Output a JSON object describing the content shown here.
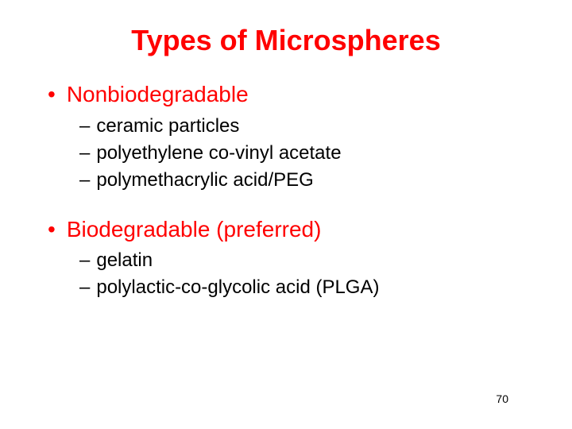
{
  "slide": {
    "title": "Types of Microspheres",
    "title_color": "#ff0000",
    "title_fontsize": 36,
    "sections": [
      {
        "heading": "Nonbiodegradable",
        "heading_color": "#ff0000",
        "heading_fontsize": 28,
        "bullet_marker": "•",
        "items": [
          "ceramic particles",
          "polyethylene co-vinyl acetate",
          "polymethacrylic acid/PEG"
        ],
        "item_color": "#000000",
        "item_fontsize": 24,
        "dash_marker": "–"
      },
      {
        "heading": "Biodegradable (preferred)",
        "heading_color": "#ff0000",
        "heading_fontsize": 28,
        "bullet_marker": "•",
        "items": [
          "gelatin",
          "polylactic-co-glycolic acid (PLGA)"
        ],
        "item_color": "#000000",
        "item_fontsize": 24,
        "dash_marker": "–"
      }
    ],
    "page_number": "70",
    "page_number_fontsize": 14,
    "page_number_color": "#000000",
    "background_color": "#ffffff"
  }
}
